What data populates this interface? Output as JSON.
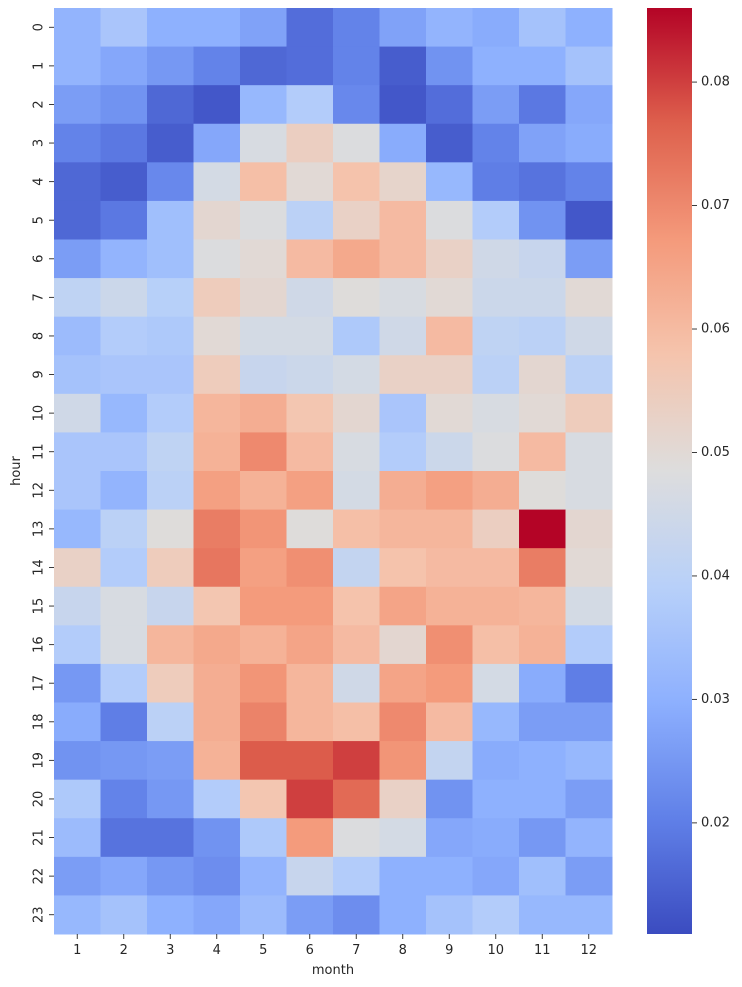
{
  "chart_data": {
    "type": "heatmap",
    "title": "",
    "xlabel": "month",
    "ylabel": "hour",
    "colormap": "coolwarm",
    "x_categories": [
      "1",
      "2",
      "3",
      "4",
      "5",
      "6",
      "7",
      "8",
      "9",
      "10",
      "11",
      "12"
    ],
    "y_categories": [
      "0",
      "1",
      "2",
      "3",
      "4",
      "5",
      "6",
      "7",
      "8",
      "9",
      "10",
      "11",
      "12",
      "13",
      "14",
      "15",
      "16",
      "17",
      "18",
      "19",
      "20",
      "21",
      "22",
      "23"
    ],
    "vmin": 0.011,
    "vmax": 0.086,
    "colorbar_ticks": [
      0.02,
      0.03,
      0.04,
      0.05,
      0.06,
      0.07,
      0.08
    ],
    "colorbar_tick_labels": [
      "0.02",
      "0.03",
      "0.04",
      "0.05",
      "0.06",
      "0.07",
      "0.08"
    ],
    "values": [
      [
        0.031,
        0.036,
        0.03,
        0.03,
        0.027,
        0.017,
        0.021,
        0.027,
        0.031,
        0.029,
        0.035,
        0.03
      ],
      [
        0.031,
        0.028,
        0.025,
        0.021,
        0.016,
        0.017,
        0.021,
        0.014,
        0.024,
        0.03,
        0.03,
        0.035
      ],
      [
        0.026,
        0.024,
        0.016,
        0.013,
        0.032,
        0.038,
        0.022,
        0.013,
        0.017,
        0.026,
        0.019,
        0.028
      ],
      [
        0.021,
        0.019,
        0.014,
        0.028,
        0.047,
        0.054,
        0.048,
        0.029,
        0.014,
        0.021,
        0.027,
        0.029
      ],
      [
        0.016,
        0.014,
        0.022,
        0.046,
        0.059,
        0.05,
        0.058,
        0.052,
        0.032,
        0.02,
        0.018,
        0.021
      ],
      [
        0.016,
        0.019,
        0.034,
        0.051,
        0.048,
        0.04,
        0.053,
        0.06,
        0.048,
        0.038,
        0.024,
        0.013
      ],
      [
        0.026,
        0.031,
        0.034,
        0.048,
        0.05,
        0.06,
        0.064,
        0.06,
        0.053,
        0.045,
        0.043,
        0.026
      ],
      [
        0.041,
        0.044,
        0.039,
        0.055,
        0.051,
        0.045,
        0.049,
        0.047,
        0.05,
        0.044,
        0.044,
        0.05
      ],
      [
        0.033,
        0.038,
        0.037,
        0.05,
        0.046,
        0.046,
        0.037,
        0.045,
        0.06,
        0.041,
        0.04,
        0.045
      ],
      [
        0.035,
        0.036,
        0.036,
        0.055,
        0.043,
        0.044,
        0.046,
        0.053,
        0.053,
        0.04,
        0.051,
        0.04
      ],
      [
        0.045,
        0.032,
        0.038,
        0.061,
        0.063,
        0.057,
        0.051,
        0.036,
        0.05,
        0.047,
        0.05,
        0.055
      ],
      [
        0.036,
        0.036,
        0.041,
        0.062,
        0.07,
        0.06,
        0.047,
        0.038,
        0.044,
        0.048,
        0.06,
        0.047
      ],
      [
        0.036,
        0.031,
        0.04,
        0.066,
        0.062,
        0.066,
        0.046,
        0.063,
        0.066,
        0.063,
        0.049,
        0.047
      ],
      [
        0.032,
        0.04,
        0.049,
        0.072,
        0.068,
        0.049,
        0.059,
        0.061,
        0.061,
        0.054,
        0.086,
        0.051
      ],
      [
        0.053,
        0.038,
        0.055,
        0.073,
        0.066,
        0.069,
        0.042,
        0.058,
        0.06,
        0.06,
        0.072,
        0.05
      ],
      [
        0.043,
        0.047,
        0.043,
        0.057,
        0.067,
        0.067,
        0.058,
        0.065,
        0.062,
        0.062,
        0.061,
        0.046
      ],
      [
        0.038,
        0.047,
        0.061,
        0.064,
        0.062,
        0.065,
        0.06,
        0.051,
        0.069,
        0.059,
        0.062,
        0.038
      ],
      [
        0.025,
        0.038,
        0.055,
        0.063,
        0.068,
        0.061,
        0.045,
        0.065,
        0.067,
        0.046,
        0.029,
        0.02
      ],
      [
        0.029,
        0.02,
        0.04,
        0.063,
        0.071,
        0.061,
        0.059,
        0.07,
        0.06,
        0.032,
        0.026,
        0.026
      ],
      [
        0.024,
        0.025,
        0.026,
        0.062,
        0.077,
        0.077,
        0.08,
        0.068,
        0.042,
        0.029,
        0.03,
        0.032
      ],
      [
        0.037,
        0.021,
        0.025,
        0.038,
        0.057,
        0.08,
        0.075,
        0.053,
        0.024,
        0.03,
        0.03,
        0.026
      ],
      [
        0.033,
        0.018,
        0.018,
        0.024,
        0.037,
        0.067,
        0.048,
        0.046,
        0.028,
        0.029,
        0.025,
        0.031
      ],
      [
        0.026,
        0.028,
        0.025,
        0.023,
        0.031,
        0.043,
        0.038,
        0.03,
        0.03,
        0.028,
        0.034,
        0.026
      ],
      [
        0.032,
        0.035,
        0.03,
        0.028,
        0.033,
        0.026,
        0.023,
        0.03,
        0.035,
        0.038,
        0.032,
        0.032
      ]
    ]
  }
}
